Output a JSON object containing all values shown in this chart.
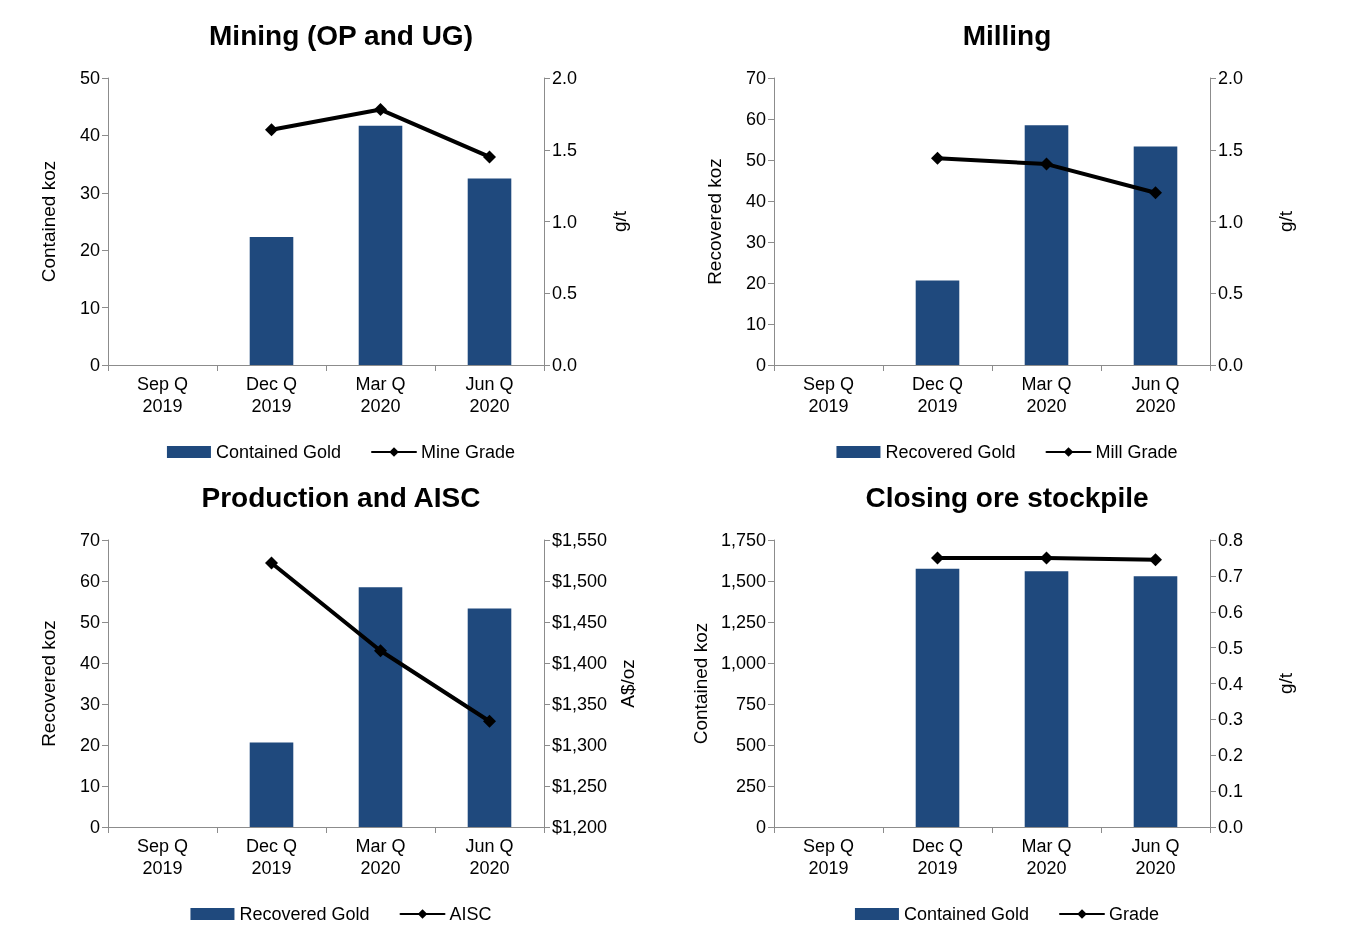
{
  "chart_data": [
    {
      "type": "bar",
      "title": "Mining (OP and UG)",
      "ylabel": "Contained koz",
      "y2label": "g/t",
      "categories": [
        "Sep Q\n2019",
        "Dec Q\n2019",
        "Mar Q\n2020",
        "Jun Q\n2020"
      ],
      "series": [
        {
          "name": "Contained Gold",
          "color": "#1f497d",
          "values": [
            null,
            22.3,
            41.7,
            32.5
          ]
        },
        {
          "name": "Mine Grade",
          "type": "line",
          "axis": "y2",
          "color": "#000000",
          "marker": "diamond",
          "values": [
            null,
            1.64,
            1.78,
            1.45
          ]
        }
      ],
      "ylim": [
        0,
        50
      ],
      "yticks": [
        0,
        10,
        20,
        30,
        40,
        50
      ],
      "y2lim": [
        0,
        2
      ],
      "y2ticks": [
        {
          "value": 0,
          "label": "0.0"
        },
        {
          "value": 0.5,
          "label": "0.5"
        },
        {
          "value": 1,
          "label": "1.0"
        },
        {
          "value": 1.5,
          "label": "1.5"
        },
        {
          "value": 2,
          "label": "2.0"
        }
      ],
      "legend": "bottom",
      "grid": false
    },
    {
      "type": "bar",
      "title": "Milling",
      "ylabel": "Recovered koz",
      "y2label": "g/t",
      "categories": [
        "Sep Q\n2019",
        "Dec Q\n2019",
        "Mar Q\n2020",
        "Jun Q\n2020"
      ],
      "series": [
        {
          "name": "Recovered Gold",
          "color": "#1f497d",
          "values": [
            null,
            20.6,
            58.5,
            53.3
          ]
        },
        {
          "name": "Mill Grade",
          "type": "line",
          "axis": "y2",
          "color": "#000000",
          "marker": "diamond",
          "values": [
            null,
            1.44,
            1.4,
            1.2
          ]
        }
      ],
      "ylim": [
        0,
        70
      ],
      "yticks": [
        0,
        10,
        20,
        30,
        40,
        50,
        60,
        70
      ],
      "y2lim": [
        0,
        2
      ],
      "y2ticks": [
        {
          "value": 0,
          "label": "0.0"
        },
        {
          "value": 0.5,
          "label": "0.5"
        },
        {
          "value": 1,
          "label": "1.0"
        },
        {
          "value": 1.5,
          "label": "1.5"
        },
        {
          "value": 2,
          "label": "2.0"
        }
      ],
      "legend": "bottom",
      "grid": false
    },
    {
      "type": "bar",
      "title": "Production and AISC",
      "ylabel": "Recovered koz",
      "y2label": "A$/oz",
      "categories": [
        "Sep Q\n2019",
        "Dec Q\n2019",
        "Mar Q\n2020",
        "Jun Q\n2020"
      ],
      "series": [
        {
          "name": "Recovered Gold",
          "color": "#1f497d",
          "values": [
            null,
            20.6,
            58.5,
            53.3
          ]
        },
        {
          "name": "AISC",
          "type": "line",
          "axis": "y2",
          "color": "#000000",
          "marker": "diamond",
          "values": [
            null,
            1522,
            1415,
            1329
          ]
        }
      ],
      "ylim": [
        0,
        70
      ],
      "yticks": [
        0,
        10,
        20,
        30,
        40,
        50,
        60,
        70
      ],
      "y2lim": [
        1200,
        1550
      ],
      "y2ticks": [
        {
          "value": 1200,
          "label": "$1,200"
        },
        {
          "value": 1250,
          "label": "$1,250"
        },
        {
          "value": 1300,
          "label": "$1,300"
        },
        {
          "value": 1350,
          "label": "$1,350"
        },
        {
          "value": 1400,
          "label": "$1,400"
        },
        {
          "value": 1450,
          "label": "$1,450"
        },
        {
          "value": 1500,
          "label": "$1,500"
        },
        {
          "value": 1550,
          "label": "$1,550"
        }
      ],
      "legend": "bottom",
      "grid": false
    },
    {
      "type": "bar",
      "title": "Closing ore stockpile",
      "ylabel": "Contained koz",
      "y2label": "g/t",
      "categories": [
        "Sep Q\n2019",
        "Dec Q\n2019",
        "Mar Q\n2020",
        "Jun Q\n2020"
      ],
      "series": [
        {
          "name": "Contained Gold",
          "color": "#1f497d",
          "values": [
            null,
            1575,
            1560,
            1529
          ]
        },
        {
          "name": "Grade",
          "type": "line",
          "axis": "y2",
          "color": "#000000",
          "marker": "diamond",
          "values": [
            null,
            0.75,
            0.75,
            0.745
          ]
        }
      ],
      "ylim": [
        0,
        1750
      ],
      "yticks": [
        0,
        250,
        500,
        750,
        {
          "value": 1000,
          "label": "1,000"
        },
        {
          "value": 1250,
          "label": "1,250"
        },
        {
          "value": 1500,
          "label": "1,500"
        },
        {
          "value": 1750,
          "label": "1,750"
        }
      ],
      "y2lim": [
        0,
        0.8
      ],
      "y2ticks": [
        {
          "value": 0,
          "label": "0.0"
        },
        {
          "value": 0.1,
          "label": "0.1"
        },
        {
          "value": 0.2,
          "label": "0.2"
        },
        {
          "value": 0.3,
          "label": "0.3"
        },
        {
          "value": 0.4,
          "label": "0.4"
        },
        {
          "value": 0.5,
          "label": "0.5"
        },
        {
          "value": 0.6,
          "label": "0.6"
        },
        {
          "value": 0.7,
          "label": "0.7"
        },
        {
          "value": 0.8,
          "label": "0.8"
        }
      ],
      "legend": "bottom",
      "grid": false
    }
  ]
}
